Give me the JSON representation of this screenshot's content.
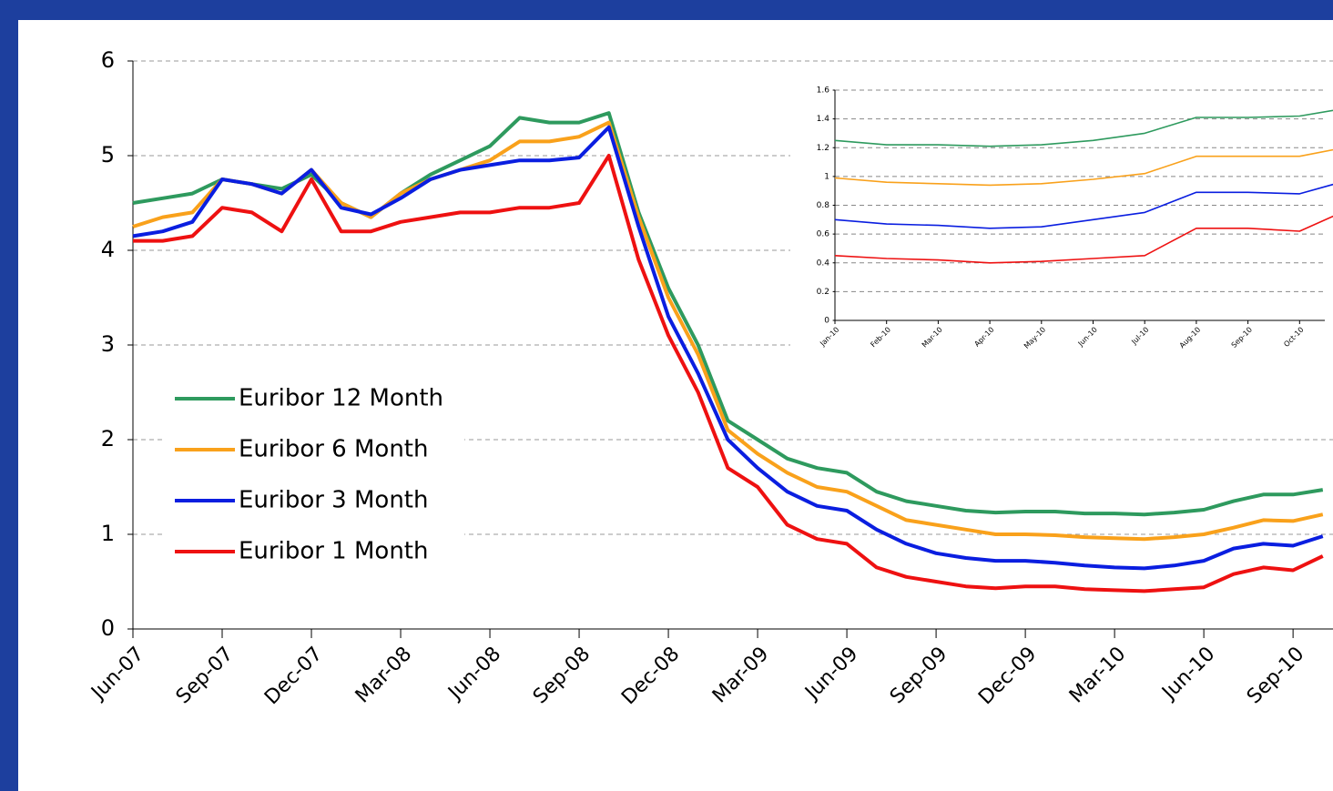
{
  "chart_data": [
    {
      "type": "line",
      "categories": [
        "Jun-07",
        null,
        null,
        "Sep-07",
        null,
        null,
        "Dec-07",
        null,
        null,
        "Mar-08",
        null,
        null,
        "Jun-08",
        null,
        null,
        "Sep-08",
        null,
        null,
        "Dec-08",
        null,
        null,
        "Mar-09",
        null,
        null,
        "Jun-09",
        null,
        null,
        "Sep-09",
        null,
        null,
        "Dec-09",
        null,
        null,
        "Mar-10",
        null,
        null,
        "Jun-10",
        null,
        null,
        "Sep-10",
        null
      ],
      "series": [
        {
          "name": "Euribor 12 Month",
          "color": "#2e9a5e",
          "values": [
            4.5,
            4.55,
            4.6,
            4.75,
            4.7,
            4.65,
            4.8,
            4.5,
            4.35,
            4.6,
            4.8,
            4.95,
            5.1,
            5.4,
            5.35,
            5.35,
            5.45,
            4.4,
            3.6,
            3.0,
            2.2,
            2.0,
            1.8,
            1.7,
            1.65,
            1.45,
            1.35,
            1.3,
            1.25,
            1.23,
            1.24,
            1.24,
            1.22,
            1.22,
            1.21,
            1.23,
            1.26,
            1.35,
            1.42,
            1.42,
            1.47
          ]
        },
        {
          "name": "Euribor 6 Month",
          "color": "#f9a11b",
          "values": [
            4.25,
            4.35,
            4.4,
            4.75,
            4.7,
            4.6,
            4.85,
            4.5,
            4.35,
            4.6,
            4.75,
            4.85,
            4.95,
            5.15,
            5.15,
            5.2,
            5.35,
            4.35,
            3.5,
            2.9,
            2.1,
            1.85,
            1.65,
            1.5,
            1.45,
            1.3,
            1.15,
            1.1,
            1.05,
            1.0,
            1.0,
            0.99,
            0.97,
            0.96,
            0.95,
            0.97,
            1.0,
            1.07,
            1.15,
            1.14,
            1.21
          ]
        },
        {
          "name": "Euribor 3 Month",
          "color": "#0a1ee0",
          "values": [
            4.15,
            4.2,
            4.3,
            4.75,
            4.7,
            4.6,
            4.85,
            4.45,
            4.38,
            4.55,
            4.75,
            4.85,
            4.9,
            4.95,
            4.95,
            4.98,
            5.3,
            4.25,
            3.3,
            2.7,
            2.0,
            1.7,
            1.45,
            1.3,
            1.25,
            1.05,
            0.9,
            0.8,
            0.75,
            0.72,
            0.72,
            0.7,
            0.67,
            0.65,
            0.64,
            0.67,
            0.72,
            0.85,
            0.9,
            0.88,
            0.98
          ]
        },
        {
          "name": "Euribor 1 Month",
          "color": "#ee1111",
          "values": [
            4.1,
            4.1,
            4.15,
            4.45,
            4.4,
            4.2,
            4.75,
            4.2,
            4.2,
            4.3,
            4.35,
            4.4,
            4.4,
            4.45,
            4.45,
            4.5,
            5.0,
            3.9,
            3.1,
            2.5,
            1.7,
            1.5,
            1.1,
            0.95,
            0.9,
            0.65,
            0.55,
            0.5,
            0.45,
            0.43,
            0.45,
            0.45,
            0.42,
            0.41,
            0.4,
            0.42,
            0.44,
            0.58,
            0.65,
            0.62,
            0.77
          ]
        }
      ],
      "ylim": [
        0,
        6
      ],
      "yticks": [
        0,
        1,
        2,
        3,
        4,
        5,
        6
      ],
      "grid": true
    },
    {
      "type": "line",
      "categories": [
        "Jan-10",
        "Feb-10",
        "Mar-10",
        "Apr-10",
        "May-10",
        "Jun-10",
        "Jul-10",
        "Aug-10",
        "Sep-10",
        "Oct-10",
        null
      ],
      "series": [
        {
          "name": "Euribor 12 Month",
          "color": "#2e9a5e",
          "values": [
            1.25,
            1.22,
            1.22,
            1.21,
            1.22,
            1.25,
            1.3,
            1.41,
            1.41,
            1.42,
            1.48
          ]
        },
        {
          "name": "Euribor 6 Month",
          "color": "#f9a11b",
          "values": [
            0.99,
            0.96,
            0.95,
            0.94,
            0.95,
            0.98,
            1.02,
            1.14,
            1.14,
            1.14,
            1.21
          ]
        },
        {
          "name": "Euribor 3 Month",
          "color": "#0a1ee0",
          "values": [
            0.7,
            0.67,
            0.66,
            0.64,
            0.65,
            0.7,
            0.75,
            0.89,
            0.89,
            0.88,
            0.98
          ]
        },
        {
          "name": "Euribor 1 Month",
          "color": "#ee1111",
          "values": [
            0.45,
            0.43,
            0.42,
            0.4,
            0.41,
            0.43,
            0.45,
            0.64,
            0.64,
            0.62,
            0.78
          ]
        }
      ],
      "ylim": [
        0,
        1.6
      ],
      "yticks": [
        0,
        0.2,
        0.4,
        0.6,
        0.8,
        1,
        1.2,
        1.4,
        1.6
      ],
      "grid": true
    }
  ]
}
